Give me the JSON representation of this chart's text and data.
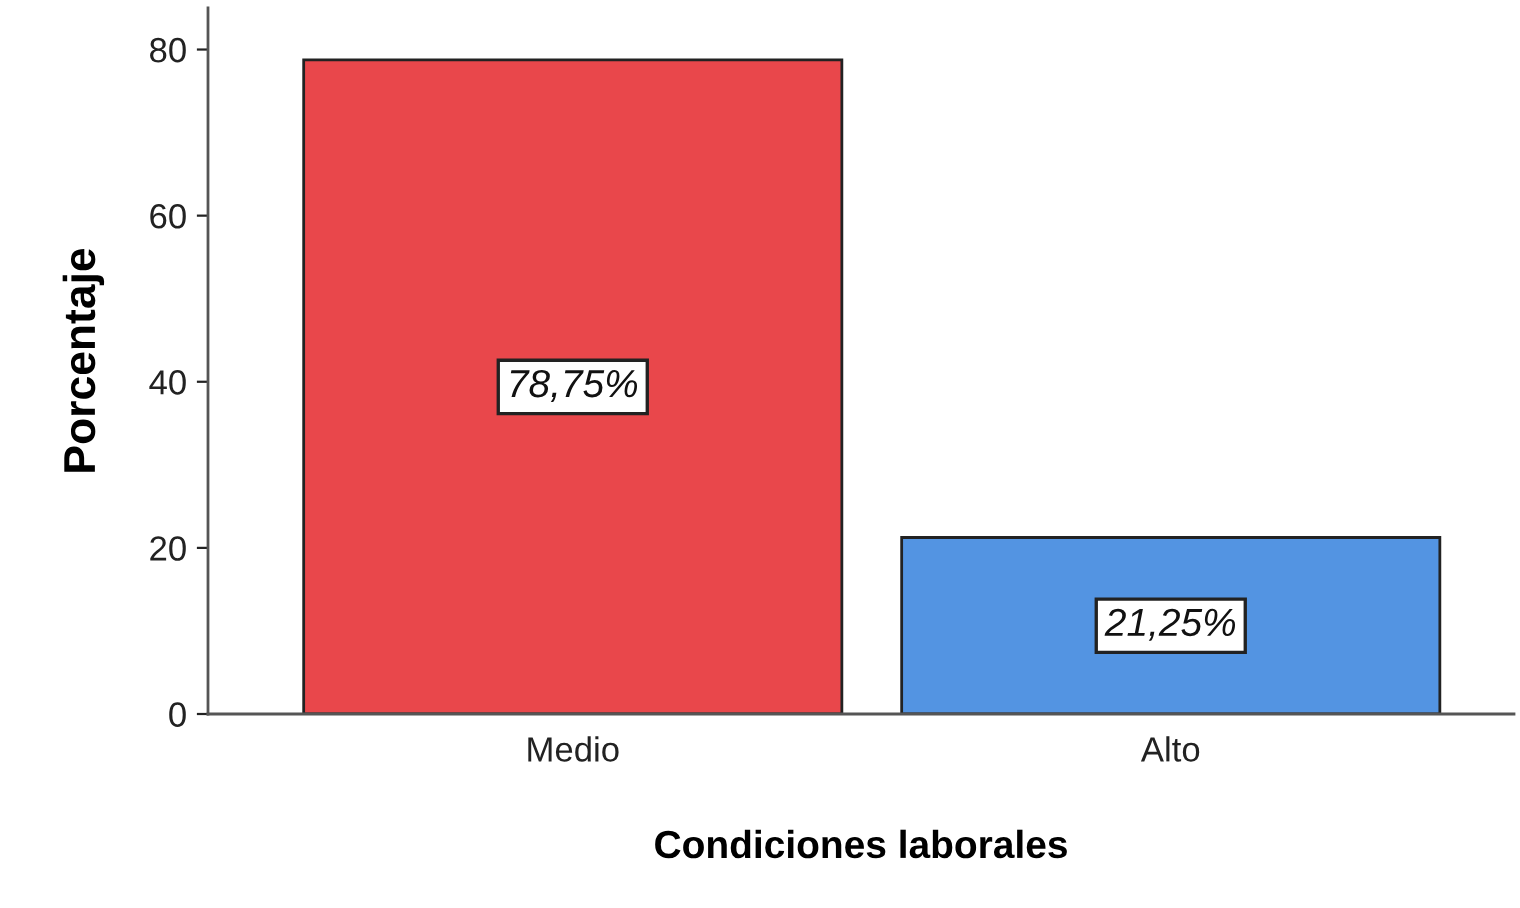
{
  "chart_data": {
    "type": "bar",
    "xlabel": "Condiciones laborales",
    "ylabel": "Porcentaje",
    "categories": [
      "Medio",
      "Alto"
    ],
    "values": [
      78.75,
      21.25
    ],
    "colors": [
      "#e9474b",
      "#5394e2"
    ],
    "value_labels": [
      "78,75%",
      "21,25%"
    ],
    "ylim": [
      0,
      85
    ],
    "yticks": [
      0,
      20,
      40,
      60,
      80
    ]
  }
}
